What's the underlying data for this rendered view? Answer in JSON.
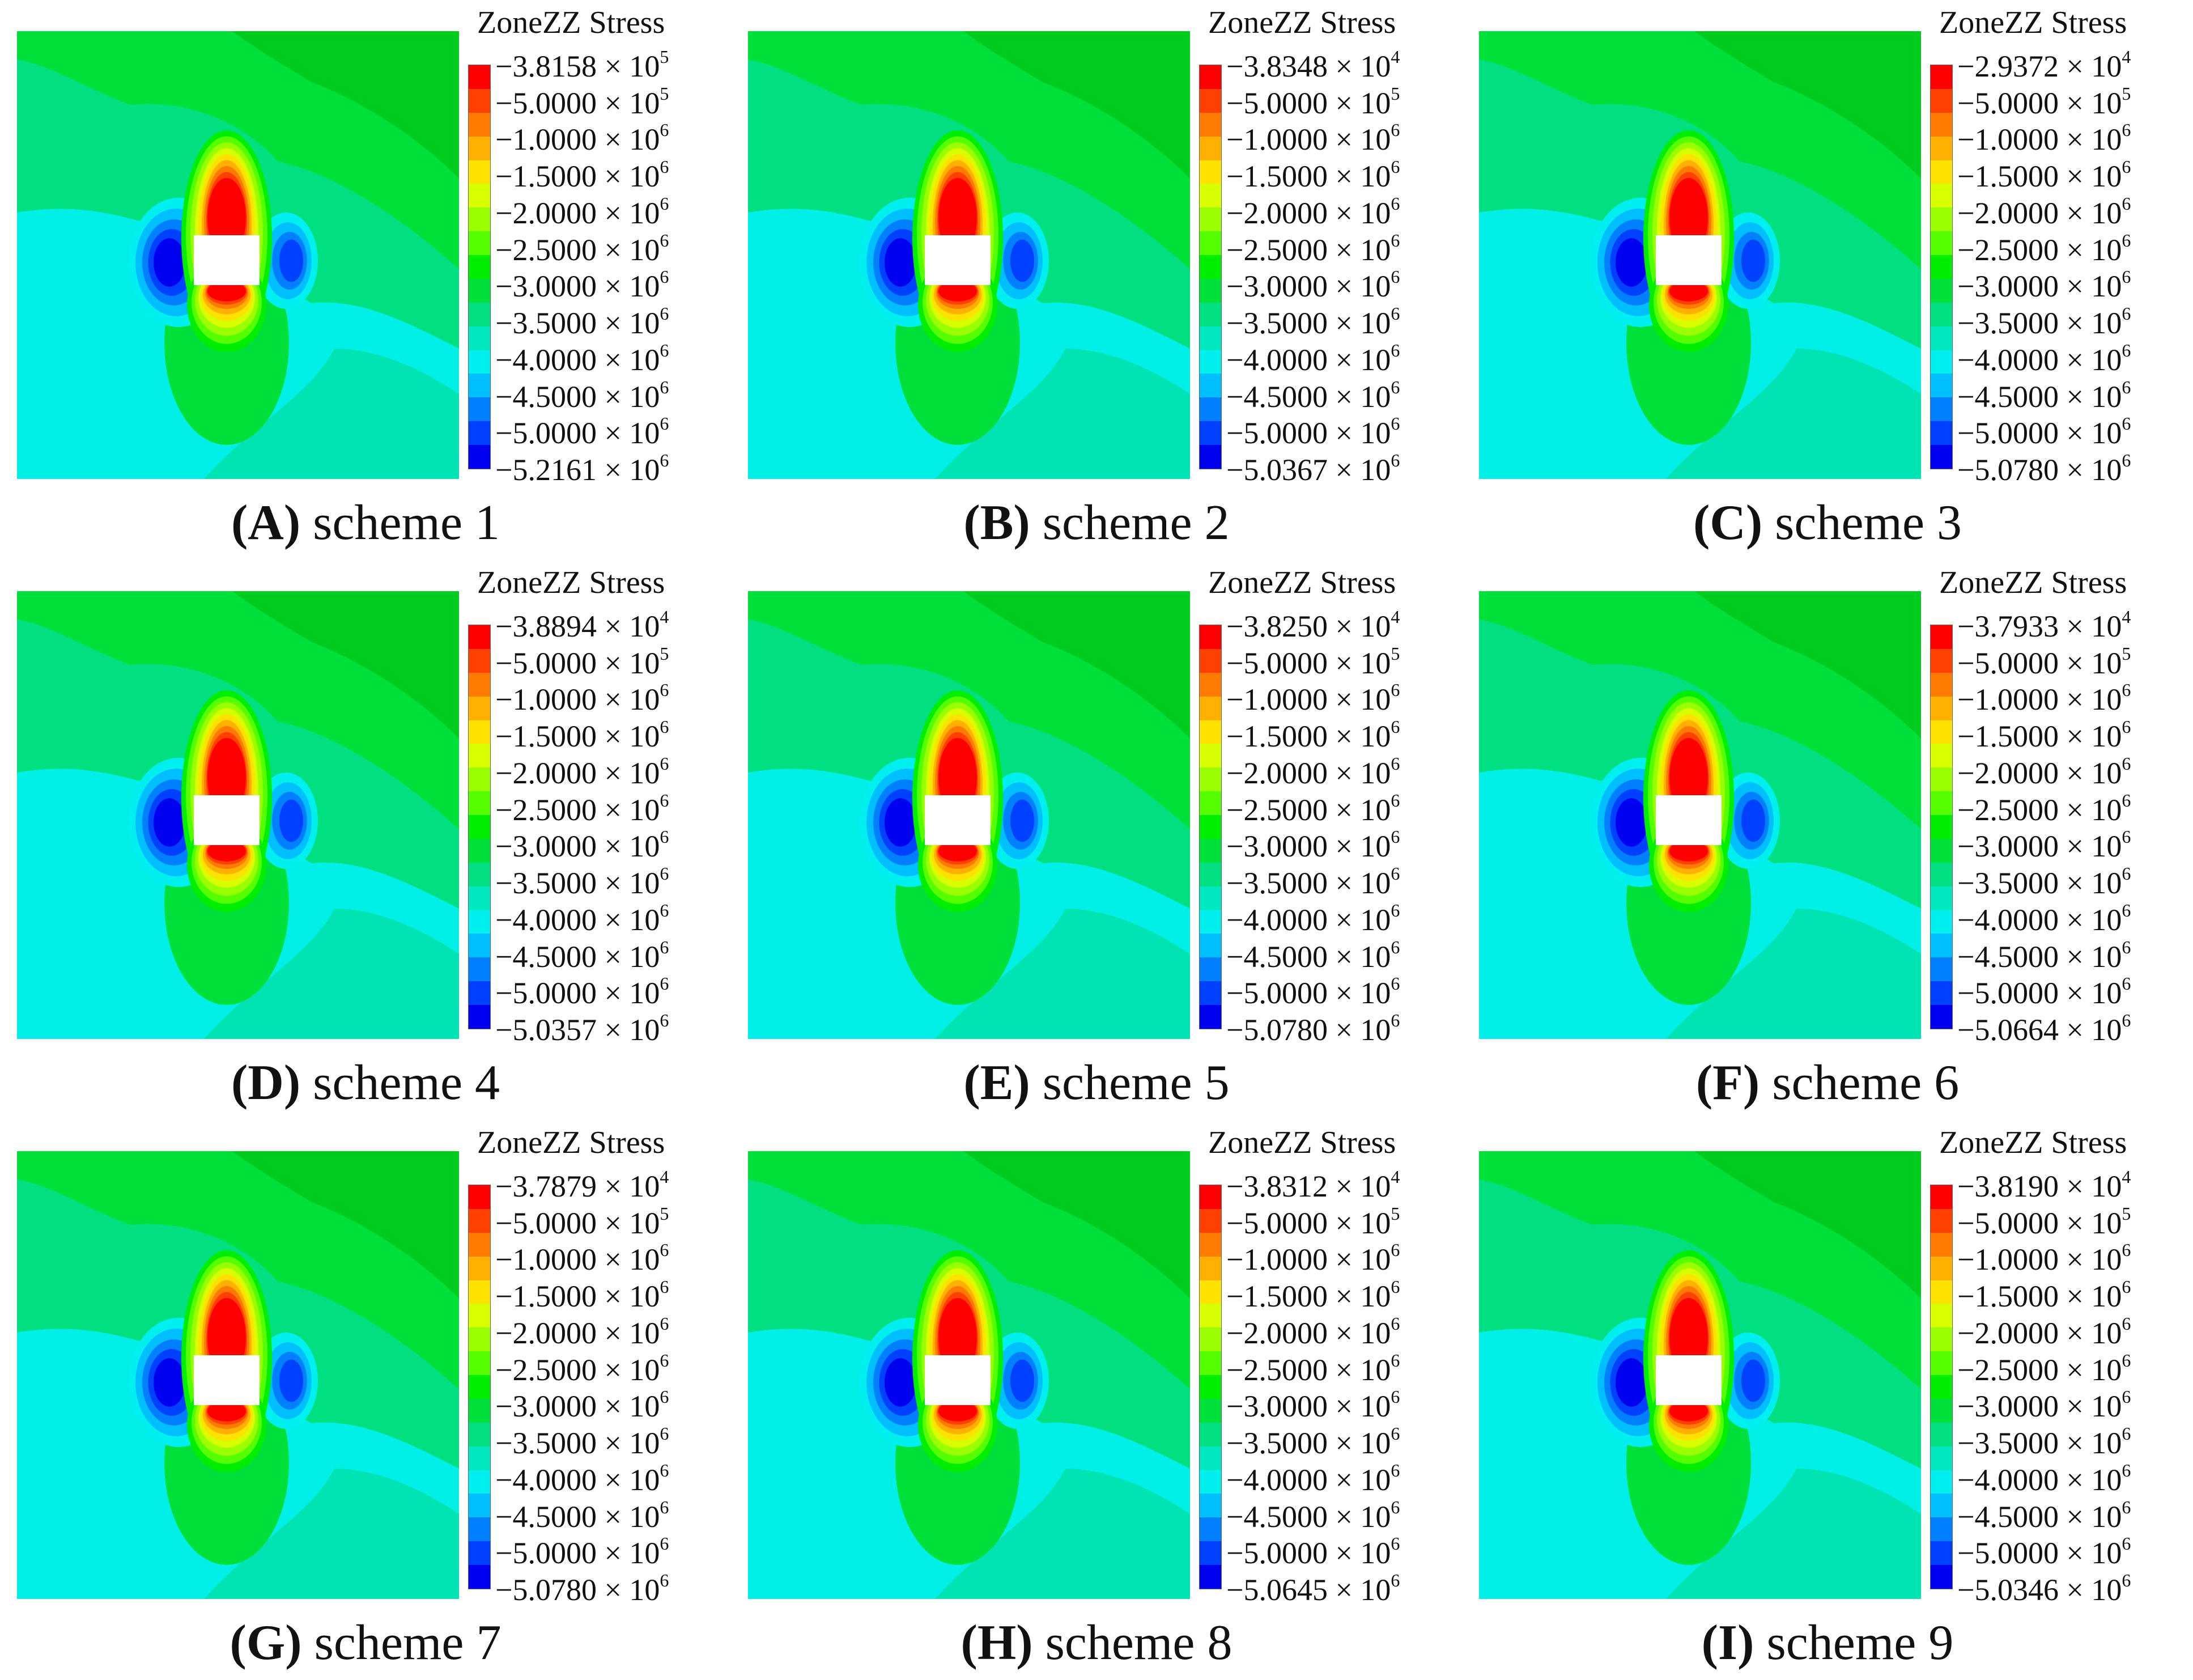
{
  "legend_title": "ZoneZZ Stress",
  "colormap": [
    "#ff0000",
    "#ff4000",
    "#ff7a00",
    "#ffb000",
    "#ffe200",
    "#d8ff00",
    "#9aff00",
    "#55ff00",
    "#00ee00",
    "#00e03a",
    "#00e080",
    "#00e8c0",
    "#00f0f0",
    "#00bfff",
    "#0080ff",
    "#0040ff",
    "#0000f0"
  ],
  "field_colors": {
    "cavity": "#ffffff",
    "cyan": "#00f0e8",
    "teal": "#00e4b4",
    "greencyan": "#00e080",
    "green": "#00e03a",
    "darkgreen": "#00cc20"
  },
  "shared_labels": [
    {
      "m": "5.0000",
      "e": "5"
    },
    {
      "m": "1.0000",
      "e": "6"
    },
    {
      "m": "1.5000",
      "e": "6"
    },
    {
      "m": "2.0000",
      "e": "6"
    },
    {
      "m": "2.5000",
      "e": "6"
    },
    {
      "m": "3.0000",
      "e": "6"
    },
    {
      "m": "3.5000",
      "e": "6"
    },
    {
      "m": "4.0000",
      "e": "6"
    },
    {
      "m": "4.5000",
      "e": "6"
    },
    {
      "m": "5.0000",
      "e": "6"
    }
  ],
  "panels": [
    {
      "letter": "(A)",
      "name": "scheme 1",
      "max": {
        "m": "3.8158",
        "e": "5"
      },
      "min": {
        "m": "5.2161",
        "e": "6"
      }
    },
    {
      "letter": "(B)",
      "name": "scheme 2",
      "max": {
        "m": "3.8348",
        "e": "4"
      },
      "min": {
        "m": "5.0367",
        "e": "6"
      }
    },
    {
      "letter": "(C)",
      "name": "scheme 3",
      "max": {
        "m": "2.9372",
        "e": "4"
      },
      "min": {
        "m": "5.0780",
        "e": "6"
      }
    },
    {
      "letter": "(D)",
      "name": "scheme 4",
      "max": {
        "m": "3.8894",
        "e": "4"
      },
      "min": {
        "m": "5.0357",
        "e": "6"
      }
    },
    {
      "letter": "(E)",
      "name": "scheme 5",
      "max": {
        "m": "3.8250",
        "e": "4"
      },
      "min": {
        "m": "5.0780",
        "e": "6"
      }
    },
    {
      "letter": "(F)",
      "name": "scheme 6",
      "max": {
        "m": "3.7933",
        "e": "4"
      },
      "min": {
        "m": "5.0664",
        "e": "6"
      }
    },
    {
      "letter": "(G)",
      "name": "scheme 7",
      "max": {
        "m": "3.7879",
        "e": "4"
      },
      "min": {
        "m": "5.0780",
        "e": "6"
      }
    },
    {
      "letter": "(H)",
      "name": "scheme 8",
      "max": {
        "m": "3.8312",
        "e": "4"
      },
      "min": {
        "m": "5.0645",
        "e": "6"
      }
    },
    {
      "letter": "(I)",
      "name": "scheme 9",
      "max": {
        "m": "3.8190",
        "e": "4"
      },
      "min": {
        "m": "5.0346",
        "e": "6"
      }
    }
  ]
}
